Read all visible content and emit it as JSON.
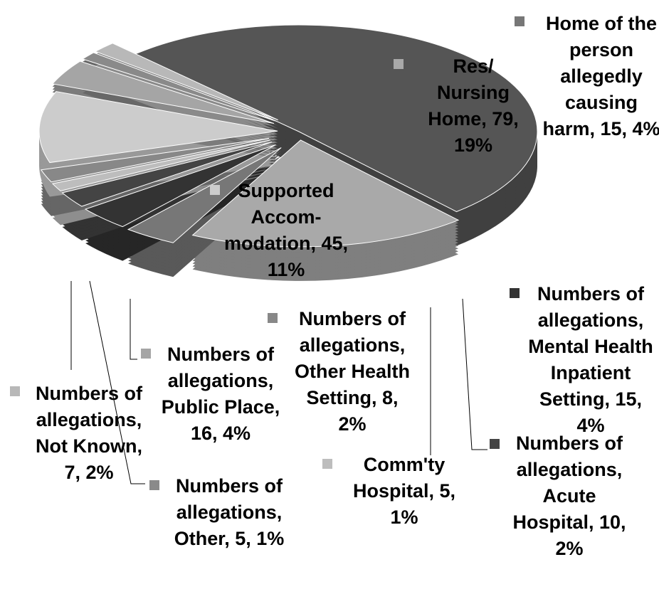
{
  "chart_data": {
    "type": "pie",
    "categories": [
      null,
      "Res/ Nursing Home",
      "Home of the person allegedly causing harm",
      "Numbers of allegations, Mental Health Inpatient Setting",
      "Numbers of allegations, Acute Hospital",
      "Comm'ty Hospital",
      "Numbers of allegations, Other Health Setting",
      "Supported Accom-modation",
      "Numbers of allegations, Public Place",
      "Numbers of allegations, Other",
      "Numbers of allegations, Not Known"
    ],
    "values": [
      211,
      79,
      15,
      15,
      10,
      5,
      8,
      45,
      16,
      5,
      7
    ],
    "value_labels": [
      null,
      "Res/ Nursing Home, 79, 19%",
      "Home of the person allegedly causing harm, 15, 4%",
      "Numbers of allegations, Mental Health Inpatient Setting, 15, 4%",
      "Numbers of allegations, Acute Hospital, 10, 2%",
      "Comm'ty Hospital, 5, 1%",
      "Numbers of allegations, Other Health Setting, 8, 2%",
      "Supported Accom-modation, 45, 11%",
      "Numbers of allegations, Public Place, 16, 4%",
      "Numbers of allegations, Other, 5, 1%",
      "Numbers of allegations, Not Known, 7, 2%"
    ],
    "colors": [
      "#555555",
      "#a9a9a9",
      "#777777",
      "#333333",
      "#444444",
      "#bdbdbd",
      "#888888",
      "#cccccc",
      "#a5a5a5",
      "#8a8a8a",
      "#b8b8b8"
    ]
  }
}
